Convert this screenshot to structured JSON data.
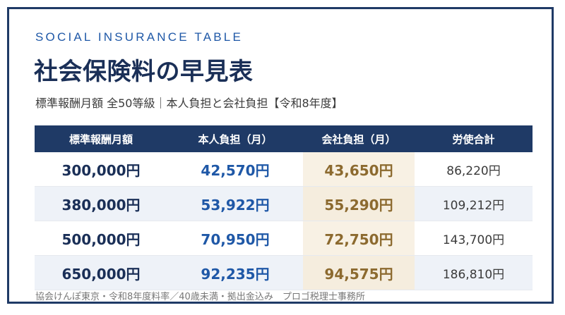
{
  "header": {
    "eyebrow": "SOCIAL INSURANCE TABLE",
    "title": "社会保険料の早見表",
    "subtitle": "標準報酬月額 全50等級｜本人負担と会社負担【令和8年度】"
  },
  "table": {
    "columns": [
      "標準報酬月額",
      "本人負担（月）",
      "会社負担（月）",
      "労使合計"
    ],
    "rows": [
      [
        "300,000円",
        "42,570円",
        "43,650円",
        "86,220円"
      ],
      [
        "380,000円",
        "53,922円",
        "55,290円",
        "109,212円"
      ],
      [
        "500,000円",
        "70,950円",
        "72,750円",
        "143,700円"
      ],
      [
        "650,000円",
        "92,235円",
        "94,575円",
        "186,810円"
      ]
    ]
  },
  "footer": {
    "note": "協会けんぽ東京・令和8年度料率／40歳未満・拠出金込み　プロゴ税理士事務所"
  },
  "colors": {
    "navy": "#1f3a66",
    "blue": "#1f58a7",
    "gold": "#8c6a2f",
    "cream": "#f8f1e4"
  }
}
